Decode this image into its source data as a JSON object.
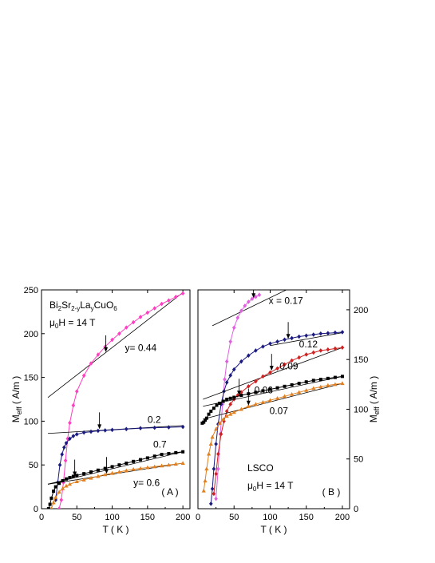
{
  "chart_data": [
    {
      "type": "line",
      "panel": "A",
      "panel_label": "( A )",
      "title_lines": [
        "Bi2Sr2-yLayCuO6",
        "μ0H = 14 T"
      ],
      "xlabel": "T ( K )",
      "ylabel": "Meff ( A/m )",
      "xlim": [
        0,
        210
      ],
      "ylim": [
        0,
        250
      ],
      "xticks": [
        0,
        50,
        100,
        150,
        200
      ],
      "yticks": [
        0,
        50,
        100,
        150,
        200,
        250
      ],
      "series": [
        {
          "name": "y= 0.44",
          "color": "#ff3fbf",
          "marker": "diamond",
          "x": [
            25,
            28,
            31,
            34,
            37,
            40,
            45,
            50,
            60,
            70,
            80,
            90,
            100,
            110,
            120,
            130,
            140,
            150,
            160,
            170,
            180,
            190,
            200
          ],
          "y": [
            0,
            10,
            30,
            55,
            80,
            98,
            118,
            134,
            152,
            166,
            176,
            185,
            193,
            200,
            207,
            213,
            219,
            224,
            229,
            234,
            238,
            242,
            246
          ],
          "fit_line": {
            "x": [
              9,
              200
            ],
            "y": [
              127,
              247
            ]
          },
          "arrow_x": 91,
          "arrow_y": 178
        },
        {
          "name": "0.2",
          "color": "#1a1a80",
          "marker": "diamond",
          "x": [
            20,
            23,
            26,
            29,
            32,
            35,
            40,
            45,
            50,
            60,
            70,
            80,
            90,
            100,
            120,
            140,
            160,
            180,
            200
          ],
          "y": [
            10,
            30,
            50,
            62,
            70,
            75,
            80,
            83,
            85,
            87,
            88,
            89,
            89.5,
            90,
            91,
            92,
            92.5,
            93,
            93.5
          ],
          "fit_line": {
            "x": [
              9,
              200
            ],
            "y": [
              86,
              95
            ]
          },
          "arrow_x": 82,
          "arrow_y": 90
        },
        {
          "name": "0.7",
          "color": "#000000",
          "marker": "square",
          "x": [
            10,
            12,
            14,
            17,
            20,
            25,
            30,
            35,
            40,
            45,
            50,
            60,
            70,
            80,
            90,
            100,
            110,
            120,
            130,
            140,
            150,
            160,
            170,
            180,
            190,
            200
          ],
          "y": [
            0,
            5,
            12,
            20,
            25,
            29,
            32,
            34,
            35.5,
            37,
            38,
            40,
            42,
            44,
            46,
            48,
            50,
            52,
            54,
            56,
            58,
            60,
            62,
            63,
            64,
            65
          ],
          "fit_line": {
            "x": [
              9,
              200
            ],
            "y": [
              28,
              65
            ]
          },
          "arrow_x": 47,
          "arrow_y": 36
        },
        {
          "name": "y= 0.6",
          "color": "#e08020",
          "marker": "triangle",
          "x": [
            14,
            17,
            20,
            25,
            30,
            35,
            40,
            50,
            60,
            70,
            80,
            90,
            100,
            110,
            120,
            130,
            140,
            150,
            160,
            170,
            180,
            190,
            200
          ],
          "y": [
            0,
            7,
            13,
            19,
            23,
            26,
            28,
            31,
            33,
            35,
            37,
            39,
            40.5,
            42,
            43.5,
            45,
            46,
            47,
            48,
            49,
            50,
            51,
            52
          ],
          "fit_line": {
            "x": [
              9,
              200
            ],
            "y": [
              28,
              52
            ]
          },
          "arrow_x": 92,
          "arrow_y": 39
        }
      ],
      "annotations": [
        {
          "text": "y= 0.44",
          "x": 118,
          "y": 180
        },
        {
          "text": "0.2",
          "x": 150,
          "y": 98
        },
        {
          "text": "0.7",
          "x": 158,
          "y": 70
        },
        {
          "text": "y= 0.6",
          "x": 130,
          "y": 26
        }
      ]
    },
    {
      "type": "line",
      "panel": "B",
      "panel_label": "( B )",
      "title_lines": [
        "LSCO",
        "μ0H = 14 T"
      ],
      "xlabel": "T ( K )",
      "ylabel": "Meff ( A/m )",
      "xlim": [
        0,
        210
      ],
      "ylim": [
        0,
        220
      ],
      "xticks": [
        0,
        50,
        100,
        150,
        200
      ],
      "yticks": [
        0,
        50,
        100,
        150,
        200
      ],
      "series": [
        {
          "name": "x = 0.17",
          "color": "#e060e0",
          "marker": "diamond",
          "x": [
            25,
            28,
            31,
            34,
            37,
            40,
            45,
            50,
            55,
            60,
            65,
            70,
            75,
            80,
            85
          ],
          "y": [
            10,
            40,
            75,
            105,
            130,
            148,
            168,
            182,
            192,
            199,
            204,
            208,
            211,
            213,
            215
          ],
          "fit_line": {
            "x": [
              20,
              128
            ],
            "y": [
              184,
              222
            ]
          },
          "arrow_x": 77,
          "arrow_y": 211
        },
        {
          "name": "0.12",
          "color": "#1a1a80",
          "marker": "diamond",
          "x": [
            18,
            20,
            22,
            25,
            28,
            32,
            36,
            40,
            45,
            50,
            60,
            70,
            80,
            90,
            100,
            110,
            120,
            130,
            140,
            150,
            160,
            170,
            180,
            190,
            200
          ],
          "y": [
            5,
            20,
            40,
            65,
            85,
            105,
            118,
            127,
            134,
            140,
            148,
            154,
            159,
            163,
            166,
            168,
            170,
            171.5,
            173,
            174,
            175,
            176,
            176.5,
            177,
            177.5
          ],
          "fit_line": {
            "x": [
              100,
              200
            ],
            "y": [
              164,
              177
            ]
          },
          "arrow_x": 125,
          "arrow_y": 170
        },
        {
          "name": "0.09",
          "color": "#d02020",
          "marker": "diamond",
          "x": [
            22,
            25,
            28,
            32,
            36,
            40,
            45,
            50,
            55,
            60,
            70,
            80,
            90,
            100,
            110,
            120,
            130,
            140,
            150,
            160,
            170,
            180,
            190,
            200
          ],
          "y": [
            15,
            35,
            55,
            75,
            88,
            98,
            105,
            110,
            114,
            117,
            123,
            128,
            133,
            137,
            141,
            145,
            149,
            152,
            155,
            157,
            159,
            160,
            161,
            162
          ],
          "fit_line": {
            "x": [
              7,
              200
            ],
            "y": [
              110,
              162
            ]
          },
          "arrow_x": 102,
          "arrow_y": 138
        },
        {
          "name": "0.06",
          "color": "#000000",
          "marker": "square",
          "x": [
            6,
            8,
            10,
            12,
            15,
            18,
            22,
            26,
            30,
            35,
            40,
            45,
            50,
            60,
            70,
            80,
            90,
            100,
            110,
            120,
            130,
            140,
            150,
            160,
            170,
            180,
            190,
            200
          ],
          "y": [
            86,
            87,
            89,
            91,
            95,
            98,
            101,
            104,
            106,
            108,
            110,
            111,
            112,
            114,
            115.5,
            117,
            118.5,
            120,
            121.5,
            123,
            124.5,
            126,
            127.5,
            129,
            130,
            131,
            132,
            133
          ],
          "fit_line": {
            "x": [
              7,
              200
            ],
            "y": [
              103,
              133
            ]
          },
          "arrow_x": 57,
          "arrow_y": 113
        },
        {
          "name": "0.07",
          "color": "#e08020",
          "marker": "triangle",
          "x": [
            8,
            10,
            12,
            15,
            18,
            20,
            25,
            30,
            35,
            40,
            45,
            50,
            60,
            70,
            80,
            90,
            100,
            110,
            120,
            130,
            140,
            150,
            160,
            170,
            180,
            190,
            200
          ],
          "y": [
            18,
            28,
            40,
            55,
            65,
            72,
            80,
            86,
            90,
            93,
            95,
            97,
            100,
            103,
            105,
            107,
            109,
            111,
            113,
            115,
            117,
            119,
            121,
            122.5,
            124,
            125,
            126
          ],
          "fit_line": {
            "x": [
              7,
              200
            ],
            "y": [
              90,
              126
            ]
          },
          "arrow_x": 70,
          "arrow_y": 103
        }
      ],
      "annotations": [
        {
          "text": "x = 0.17",
          "x": 98,
          "y": 206
        },
        {
          "text": "0.12",
          "x": 140,
          "y": 162
        },
        {
          "text": "0.09",
          "x": 113,
          "y": 140
        },
        {
          "text": "0.06",
          "x": 78,
          "y": 116
        },
        {
          "text": "0.07",
          "x": 99,
          "y": 95
        }
      ]
    }
  ]
}
